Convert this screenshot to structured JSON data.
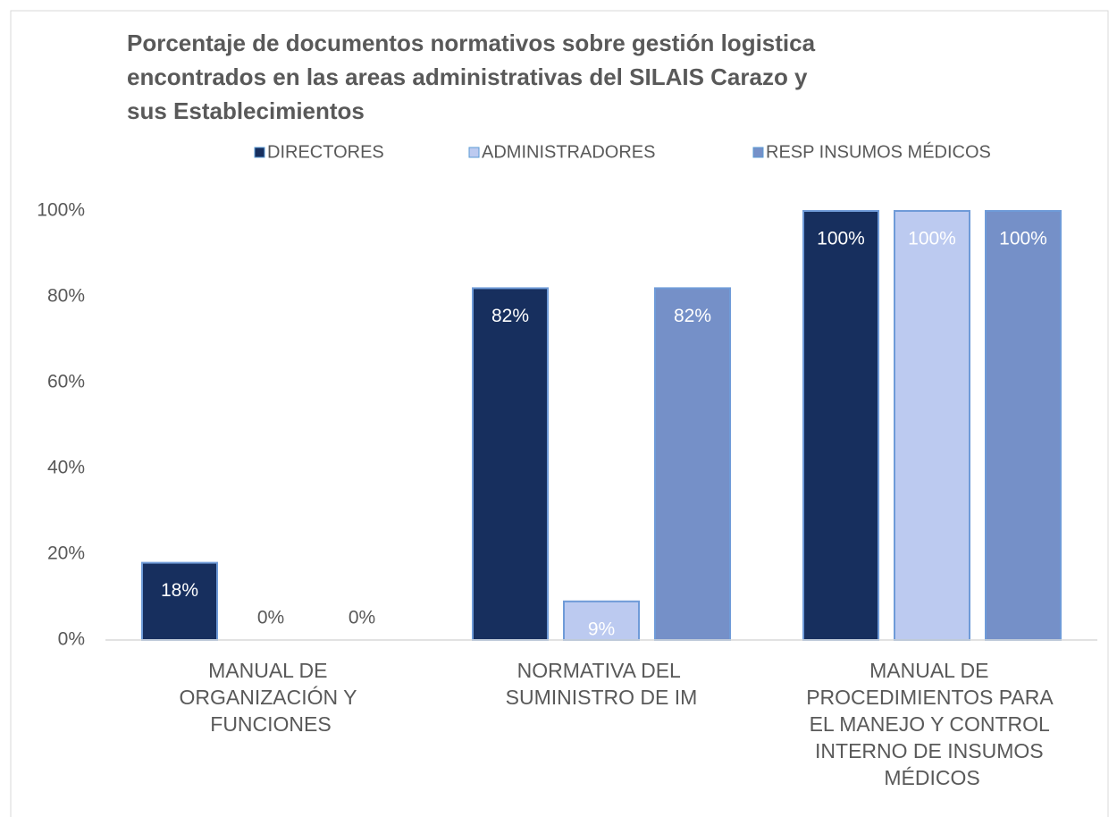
{
  "chart_data": {
    "type": "bar",
    "title": "Porcentaje de documentos normativos sobre gestión logistica encontrados en las areas administrativas del SILAIS Carazo y sus Establecimientos",
    "categories": [
      "MANUAL DE ORGANIZACIÓN Y FUNCIONES",
      "NORMATIVA DEL SUMINISTRO DE IM",
      "MANUAL DE PROCEDIMIENTOS PARA EL MANEJO Y CONTROL INTERNO DE INSUMOS MÉDICOS"
    ],
    "series": [
      {
        "name": "DIRECTORES",
        "color": "#172f5e",
        "values": [
          18,
          82,
          100
        ],
        "value_labels": [
          "18%",
          "82%",
          "100%"
        ]
      },
      {
        "name": "ADMINISTRADORES",
        "color": "#bccaf0",
        "values": [
          0,
          9,
          100
        ],
        "value_labels": [
          "0%",
          "9%",
          "100%"
        ]
      },
      {
        "name": "RESP INSUMOS MÉDICOS",
        "color": "#7590c8",
        "values": [
          0,
          82,
          100
        ],
        "value_labels": [
          "0%",
          "82%",
          "100%"
        ]
      }
    ],
    "ylim": [
      0,
      100
    ],
    "yticks": [
      {
        "value": 0,
        "label": "0%"
      },
      {
        "value": 20,
        "label": "20%"
      },
      {
        "value": 40,
        "label": "40%"
      },
      {
        "value": 60,
        "label": "60%"
      },
      {
        "value": 80,
        "label": "80%"
      },
      {
        "value": 100,
        "label": "100%"
      }
    ],
    "legend": "top",
    "grid": false
  }
}
